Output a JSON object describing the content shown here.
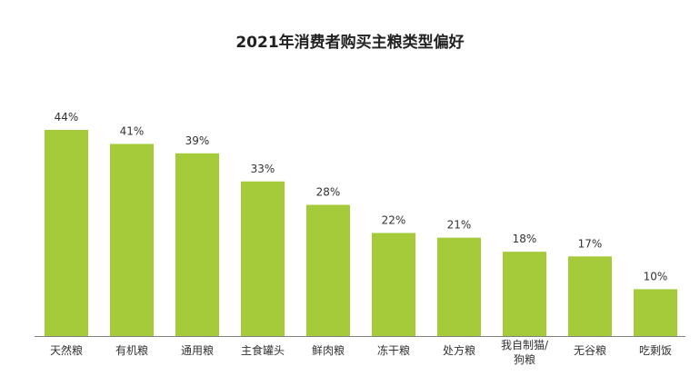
{
  "colors": {
    "bar": "#a6cb3a",
    "axis": "#7f7f7f",
    "text": "#333333",
    "title": "#222222"
  },
  "chart_data": {
    "type": "bar",
    "title": "2021年消费者购买主粮类型偏好",
    "xlabel": "",
    "ylabel": "",
    "ylim": [
      0,
      44
    ],
    "grid": false,
    "legend": "none",
    "categories": [
      "天然粮",
      "有机粮",
      "通用粮",
      "主食罐头",
      "鲜肉粮",
      "冻干粮",
      "处方粮",
      "我自制猫/狗粮",
      "无谷粮",
      "吃剩饭"
    ],
    "values": [
      44,
      41,
      39,
      33,
      28,
      22,
      21,
      18,
      17,
      10
    ],
    "data_labels": [
      "44%",
      "41%",
      "39%",
      "33%",
      "28%",
      "22%",
      "21%",
      "18%",
      "17%",
      "10%"
    ]
  }
}
